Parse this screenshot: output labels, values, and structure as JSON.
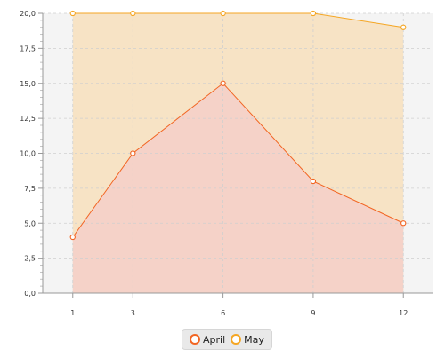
{
  "chart_data": {
    "type": "area",
    "x": [
      1,
      3,
      6,
      9,
      12
    ],
    "xticks": [
      "1",
      "3",
      "6",
      "9",
      "12"
    ],
    "xlim": [
      0,
      13
    ],
    "ylim": [
      0,
      20
    ],
    "yticks": [
      "0,0",
      "2,5",
      "5,0",
      "7,5",
      "10,0",
      "12,5",
      "15,0",
      "17,5",
      "20,0"
    ],
    "grid": true,
    "legend_position": "bottom",
    "series": [
      {
        "name": "April",
        "values": [
          4,
          10,
          15,
          8,
          5
        ],
        "color": "#f26522",
        "fill": "#f5d2c8"
      },
      {
        "name": "May",
        "values": [
          20,
          20,
          20,
          20,
          19
        ],
        "color": "#f5a623",
        "fill": "#f7e3c5"
      }
    ],
    "title": "",
    "xlabel": "",
    "ylabel": ""
  }
}
